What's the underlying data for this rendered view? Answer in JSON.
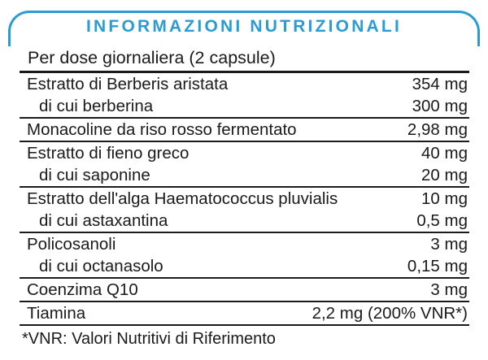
{
  "panel": {
    "title": "INFORMAZIONI NUTRIZIONALI",
    "subtitle": "Per dose giornaliera (2 capsule)",
    "footnote": "*VNR: Valori Nutritivi di Riferimento",
    "accent_color": "#2b9bd5",
    "text_color": "#1a1a1a"
  },
  "table": {
    "unit": "mg",
    "rows": [
      {
        "label": "Estratto di Berberis aristata",
        "value": "354 mg",
        "indent": false,
        "rule_after": false
      },
      {
        "label": "di cui berberina",
        "value": "300 mg",
        "indent": true,
        "rule_after": true
      },
      {
        "label": "Monacoline da riso rosso fermentato",
        "value": "2,98 mg",
        "indent": false,
        "rule_after": true
      },
      {
        "label": "Estratto di fieno greco",
        "value": "40 mg",
        "indent": false,
        "rule_after": false
      },
      {
        "label": "di cui saponine",
        "value": "20 mg",
        "indent": true,
        "rule_after": true
      },
      {
        "label": "Estratto dell'alga Haematococcus pluvialis",
        "value": "10 mg",
        "indent": false,
        "rule_after": false
      },
      {
        "label": "di cui astaxantina",
        "value": "0,5 mg",
        "indent": true,
        "rule_after": true
      },
      {
        "label": "Policosanoli",
        "value": "3 mg",
        "indent": false,
        "rule_after": false
      },
      {
        "label": "di cui octanasolo",
        "value": "0,15 mg",
        "indent": true,
        "rule_after": true
      },
      {
        "label": "Coenzima Q10",
        "value": "3 mg",
        "indent": false,
        "rule_after": true
      },
      {
        "label": "Tiamina",
        "value": "2,2 mg (200% VNR*)",
        "indent": false,
        "rule_after": true
      }
    ]
  }
}
